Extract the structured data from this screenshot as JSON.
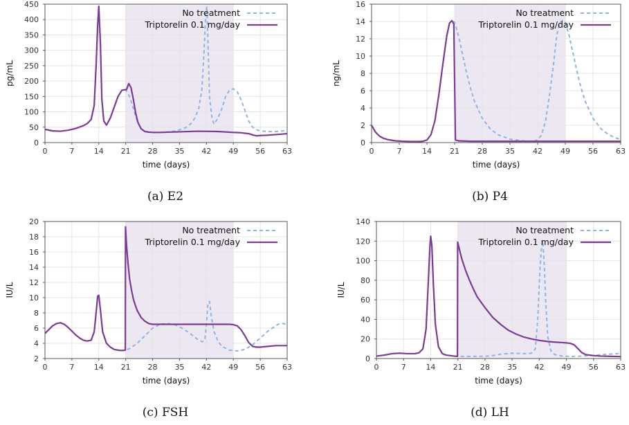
{
  "colors": {
    "no_treatment": "#8fb3e2",
    "triptorelin": "#7b3a96",
    "treatment_band": "#ece7f1",
    "grid": "#e4e4e4",
    "axis": "#555555"
  },
  "captions": [
    "(a) E2",
    "(b) P4",
    "(c) FSH",
    "(d) LH"
  ],
  "chart_data": [
    {
      "type": "line",
      "caption": "(a) E2",
      "xlabel": "time (days)",
      "ylabel": "pg/mL",
      "xlim": [
        0,
        63
      ],
      "ylim": [
        0,
        450
      ],
      "xticks": [
        0,
        7,
        14,
        21,
        28,
        35,
        42,
        49,
        56,
        63
      ],
      "yticks": [
        0,
        50,
        100,
        150,
        200,
        250,
        300,
        350,
        400,
        450
      ],
      "legend_position": "top-right",
      "grid": true,
      "shaded_x_range": [
        21,
        49
      ],
      "series": [
        {
          "name": "No treatment",
          "style": "dashed",
          "x": [
            0,
            2,
            4,
            6,
            8,
            10,
            11,
            12,
            12.8,
            13.3,
            13.7,
            14,
            14.4,
            14.8,
            15.3,
            16,
            17,
            18,
            19,
            20,
            21,
            22,
            23,
            24,
            25,
            26,
            27,
            28,
            30,
            32,
            34,
            36,
            37,
            38,
            39,
            40,
            40.8,
            41.4,
            41.8,
            42.1,
            42.4,
            42.8,
            43.5,
            44,
            45,
            46,
            47,
            48,
            49,
            50,
            51,
            52,
            53,
            54,
            55,
            56,
            58,
            60,
            62,
            63
          ],
          "y": [
            43,
            38,
            37,
            40,
            46,
            55,
            62,
            75,
            120,
            250,
            380,
            443,
            330,
            140,
            70,
            57,
            80,
            115,
            150,
            170,
            172,
            150,
            110,
            70,
            45,
            36,
            34,
            33,
            33,
            35,
            38,
            45,
            52,
            62,
            80,
            110,
            170,
            300,
            420,
            443,
            330,
            150,
            75,
            60,
            80,
            110,
            150,
            170,
            175,
            165,
            140,
            105,
            70,
            50,
            42,
            38,
            36,
            36,
            38,
            40
          ]
        },
        {
          "name": "Triptorelin 0.1 mg/day",
          "x": [
            0,
            2,
            4,
            6,
            8,
            10,
            11,
            12,
            12.8,
            13.3,
            13.7,
            14,
            14.4,
            14.8,
            15.3,
            16,
            17,
            18,
            19,
            20,
            20.8,
            21.2,
            21.8,
            22.4,
            23,
            23.6,
            24.2,
            25,
            26,
            27,
            28,
            30,
            35,
            40,
            45,
            49,
            51,
            53,
            54,
            55,
            56,
            58,
            60,
            62,
            63
          ],
          "y": [
            43,
            38,
            37,
            40,
            46,
            55,
            62,
            75,
            120,
            250,
            380,
            443,
            330,
            140,
            70,
            57,
            80,
            115,
            150,
            170,
            172,
            172,
            192,
            178,
            140,
            95,
            65,
            45,
            36,
            34,
            33,
            33,
            35,
            37,
            36,
            33,
            32,
            29,
            25,
            22,
            23,
            24,
            26,
            28,
            29
          ]
        }
      ]
    },
    {
      "type": "line",
      "caption": "(b) P4",
      "xlabel": "time (days)",
      "ylabel": "ng/mL",
      "xlim": [
        0,
        63
      ],
      "ylim": [
        0,
        16
      ],
      "xticks": [
        0,
        7,
        14,
        21,
        28,
        35,
        42,
        49,
        56,
        63
      ],
      "yticks": [
        0,
        2,
        4,
        6,
        8,
        10,
        12,
        14,
        16
      ],
      "legend_position": "top-right",
      "grid": true,
      "shaded_x_range": [
        21,
        49
      ],
      "series": [
        {
          "name": "No treatment",
          "style": "dashed",
          "x": [
            0,
            1,
            2,
            3,
            4,
            6,
            8,
            10,
            12,
            13,
            14,
            15,
            16,
            17,
            18,
            19,
            19.7,
            20.3,
            21,
            22,
            23,
            24,
            25,
            26,
            28,
            30,
            32,
            35,
            38,
            40,
            41,
            42,
            43,
            44,
            45,
            46,
            46.8,
            47.5,
            48.2,
            49,
            50,
            51,
            52,
            53,
            54,
            56,
            58,
            60,
            62,
            63
          ],
          "y": [
            2.0,
            1.2,
            0.75,
            0.5,
            0.35,
            0.2,
            0.15,
            0.12,
            0.12,
            0.15,
            0.3,
            0.9,
            2.5,
            5.5,
            9,
            12.3,
            13.8,
            14.1,
            13.9,
            12.3,
            10.2,
            8.1,
            6.3,
            4.8,
            2.8,
            1.6,
            0.9,
            0.4,
            0.2,
            0.15,
            0.15,
            0.3,
            0.9,
            2.5,
            5.5,
            9,
            12.3,
            13.8,
            14.1,
            13.9,
            12.3,
            10.2,
            8.1,
            6.3,
            4.8,
            2.8,
            1.6,
            0.9,
            0.5,
            0.35
          ]
        },
        {
          "name": "Triptorelin 0.1 mg/day",
          "x": [
            0,
            1,
            2,
            3,
            4,
            6,
            8,
            10,
            12,
            13,
            14,
            15,
            16,
            17,
            18,
            19,
            19.7,
            20.3,
            20.8,
            21,
            21.2,
            22,
            25,
            30,
            40,
            50,
            63
          ],
          "y": [
            2.0,
            1.2,
            0.75,
            0.5,
            0.35,
            0.2,
            0.15,
            0.12,
            0.12,
            0.15,
            0.3,
            0.9,
            2.5,
            5.5,
            9,
            12.3,
            13.8,
            14.1,
            13.7,
            7.0,
            0.3,
            0.2,
            0.15,
            0.15,
            0.15,
            0.15,
            0.15
          ]
        }
      ]
    },
    {
      "type": "line",
      "caption": "(c) FSH",
      "xlabel": "time (days)",
      "ylabel": "IU/L",
      "xlim": [
        0,
        63
      ],
      "ylim": [
        2,
        20
      ],
      "xticks": [
        0,
        7,
        14,
        21,
        28,
        35,
        42,
        49,
        56,
        63
      ],
      "yticks": [
        2,
        4,
        6,
        8,
        10,
        12,
        14,
        16,
        18,
        20
      ],
      "legend_position": "top-right",
      "grid": true,
      "shaded_x_range": [
        21,
        49
      ],
      "series": [
        {
          "name": "No treatment",
          "style": "dashed",
          "x": [
            0,
            1,
            2,
            3,
            4,
            5,
            6,
            7,
            8,
            9,
            10,
            11,
            12,
            12.8,
            13.3,
            13.7,
            14,
            14.4,
            15,
            16,
            17,
            18,
            19,
            20,
            21,
            22,
            24,
            26,
            28,
            30,
            32,
            34,
            36,
            38,
            39,
            40,
            41,
            41.6,
            42,
            42.4,
            42.8,
            43.3,
            44,
            45,
            46,
            48,
            50,
            52,
            54,
            56,
            58,
            60,
            61,
            62,
            63
          ],
          "y": [
            5.3,
            5.8,
            6.3,
            6.6,
            6.7,
            6.5,
            6.1,
            5.6,
            5.1,
            4.7,
            4.4,
            4.3,
            4.4,
            5.5,
            8,
            10.2,
            10.3,
            8.5,
            5.5,
            4.0,
            3.5,
            3.2,
            3.1,
            3.05,
            3.1,
            3.3,
            4.0,
            5.0,
            6.0,
            6.5,
            6.6,
            6.4,
            5.9,
            5.2,
            4.8,
            4.4,
            4.2,
            4.5,
            6.5,
            9.3,
            9.5,
            7.5,
            5.5,
            4.3,
            3.6,
            3.1,
            3.0,
            3.2,
            3.8,
            4.7,
            5.6,
            6.3,
            6.6,
            6.6,
            6.4
          ]
        },
        {
          "name": "Triptorelin 0.1 mg/day",
          "x": [
            0,
            1,
            2,
            3,
            4,
            5,
            6,
            7,
            8,
            9,
            10,
            11,
            12,
            12.8,
            13.3,
            13.7,
            14,
            14.4,
            15,
            16,
            17,
            18,
            19,
            20,
            20.9,
            20.95,
            21.2,
            21.6,
            22,
            22.5,
            23,
            23.5,
            24,
            25,
            26,
            27,
            28,
            30,
            35,
            40,
            45,
            48,
            49,
            50,
            51,
            52,
            53,
            54,
            55,
            56,
            58,
            60,
            63
          ],
          "y": [
            5.3,
            5.8,
            6.3,
            6.6,
            6.7,
            6.5,
            6.1,
            5.6,
            5.1,
            4.7,
            4.4,
            4.3,
            4.4,
            5.5,
            8,
            10.2,
            10.3,
            8.5,
            5.5,
            4.0,
            3.5,
            3.2,
            3.1,
            3.05,
            3.1,
            19.3,
            17.0,
            14.5,
            12.5,
            11.0,
            9.8,
            9.0,
            8.3,
            7.4,
            6.9,
            6.6,
            6.5,
            6.5,
            6.5,
            6.5,
            6.5,
            6.5,
            6.45,
            6.3,
            5.8,
            5.0,
            4.1,
            3.6,
            3.5,
            3.5,
            3.6,
            3.7,
            3.7
          ]
        }
      ]
    },
    {
      "type": "line",
      "caption": "(d) LH",
      "xlabel": "time (days)",
      "ylabel": "IU/L",
      "xlim": [
        0,
        63
      ],
      "ylim": [
        0,
        140
      ],
      "xticks": [
        0,
        7,
        14,
        21,
        28,
        35,
        42,
        49,
        56,
        63
      ],
      "yticks": [
        0,
        20,
        40,
        60,
        80,
        100,
        120,
        140
      ],
      "legend_position": "top-right",
      "grid": true,
      "shaded_x_range": [
        21,
        49
      ],
      "series": [
        {
          "name": "No treatment",
          "style": "dashed",
          "x": [
            0,
            2,
            4,
            6,
            8,
            10,
            11,
            12,
            12.8,
            13.4,
            13.8,
            14,
            14.3,
            14.7,
            15.2,
            16,
            17,
            18,
            20,
            22,
            25,
            28,
            30,
            32,
            35,
            38,
            40,
            41,
            41.6,
            42.1,
            42.5,
            42.9,
            43.3,
            43.7,
            44.2,
            45,
            46,
            48,
            50,
            52,
            54,
            56,
            58,
            60,
            62,
            63
          ],
          "y": [
            2.5,
            3.5,
            5.0,
            5.5,
            5.0,
            5.0,
            6.0,
            10,
            30,
            80,
            115,
            125,
            115,
            75,
            35,
            12,
            5,
            3.5,
            2.5,
            2.2,
            2.2,
            2.3,
            3.0,
            4.5,
            5.5,
            5.0,
            5.5,
            10,
            40,
            85,
            110,
            120,
            95,
            55,
            22,
            8,
            4,
            2.5,
            2.2,
            2.3,
            2.7,
            3.2,
            4.0,
            4.5,
            5.0,
            5.5
          ]
        },
        {
          "name": "Triptorelin 0.1 mg/day",
          "x": [
            0,
            2,
            4,
            6,
            8,
            10,
            11,
            12,
            12.8,
            13.4,
            13.8,
            14,
            14.3,
            14.7,
            15.2,
            16,
            17,
            18,
            20,
            20.9,
            20.95,
            21.5,
            22,
            23,
            24,
            25,
            26,
            28,
            30,
            32,
            34,
            36,
            38,
            40,
            42,
            44,
            46,
            48,
            49,
            50,
            51,
            52,
            53,
            54,
            56,
            58,
            60,
            63
          ],
          "y": [
            2.5,
            3.5,
            5.0,
            5.5,
            5.0,
            5.0,
            6.0,
            10,
            30,
            80,
            115,
            125,
            115,
            75,
            35,
            12,
            5,
            3.5,
            2.5,
            2.2,
            119,
            110,
            102,
            90,
            80,
            71,
            63,
            52,
            42,
            35,
            29,
            25,
            22,
            20,
            18.5,
            17.5,
            16.8,
            16.3,
            16.0,
            15.5,
            14.0,
            10.0,
            6.0,
            4.0,
            3.0,
            2.5,
            2.3,
            2.0
          ]
        }
      ]
    }
  ]
}
